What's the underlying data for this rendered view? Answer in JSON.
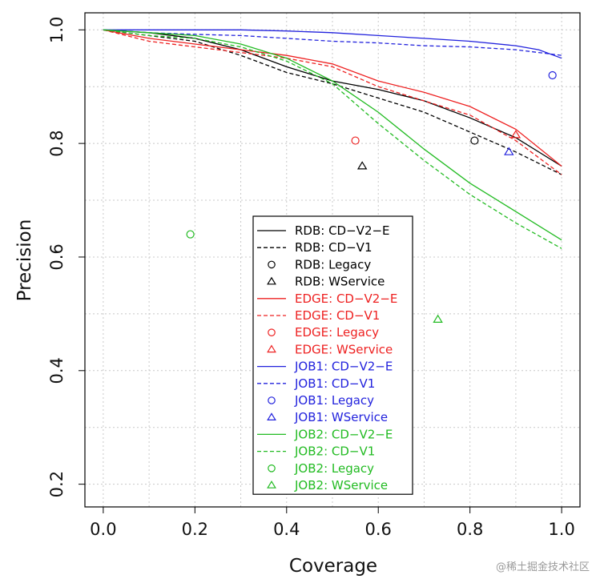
{
  "chart_data": {
    "type": "line",
    "title": "",
    "xlabel": "Coverage",
    "ylabel": "Precision",
    "xlim": [
      -0.04,
      1.04
    ],
    "ylim": [
      0.16,
      1.03
    ],
    "xticks": [
      0.0,
      0.2,
      0.4,
      0.6,
      0.8,
      1.0
    ],
    "xtick_labels": [
      "0.0",
      "0.2",
      "0.4",
      "0.6",
      "0.8",
      "1.0"
    ],
    "yticks": [
      0.2,
      0.4,
      0.6,
      0.8,
      1.0
    ],
    "ytick_labels": [
      "0.2",
      "0.4",
      "0.6",
      "0.8",
      "1.0"
    ],
    "grid": true,
    "legend_position": "bottom-center",
    "series": [
      {
        "name": "RDB: CD−V2−E",
        "kind": "line",
        "style": "solid",
        "color": "#000000",
        "x": [
          0.0,
          0.1,
          0.2,
          0.3,
          0.4,
          0.5,
          0.6,
          0.7,
          0.8,
          0.9,
          1.0
        ],
        "y": [
          1.0,
          0.995,
          0.985,
          0.965,
          0.935,
          0.91,
          0.895,
          0.875,
          0.845,
          0.81,
          0.76
        ]
      },
      {
        "name": "RDB: CD−V1",
        "kind": "line",
        "style": "dashed",
        "color": "#000000",
        "x": [
          0.0,
          0.1,
          0.2,
          0.3,
          0.4,
          0.5,
          0.6,
          0.7,
          0.8,
          0.9,
          1.0
        ],
        "y": [
          1.0,
          0.99,
          0.98,
          0.955,
          0.925,
          0.905,
          0.88,
          0.855,
          0.82,
          0.785,
          0.745
        ]
      },
      {
        "name": "RDB: Legacy",
        "kind": "point",
        "marker": "circle",
        "color": "#000000",
        "x": [
          0.81
        ],
        "y": [
          0.805
        ]
      },
      {
        "name": "RDB: WService",
        "kind": "point",
        "marker": "triangle",
        "color": "#000000",
        "x": [
          0.565
        ],
        "y": [
          0.76
        ]
      },
      {
        "name": "EDGE: CD−V2−E",
        "kind": "line",
        "style": "solid",
        "color": "#ee2222",
        "x": [
          0.0,
          0.1,
          0.2,
          0.3,
          0.4,
          0.5,
          0.6,
          0.7,
          0.8,
          0.9,
          1.0
        ],
        "y": [
          1.0,
          0.985,
          0.975,
          0.965,
          0.955,
          0.94,
          0.91,
          0.89,
          0.865,
          0.825,
          0.76
        ]
      },
      {
        "name": "EDGE: CD−V1",
        "kind": "line",
        "style": "dashed",
        "color": "#ee2222",
        "x": [
          0.0,
          0.1,
          0.2,
          0.3,
          0.4,
          0.5,
          0.6,
          0.7,
          0.8,
          0.9,
          1.0
        ],
        "y": [
          1.0,
          0.98,
          0.97,
          0.96,
          0.95,
          0.935,
          0.9,
          0.875,
          0.85,
          0.805,
          0.745
        ]
      },
      {
        "name": "EDGE: Legacy",
        "kind": "point",
        "marker": "circle",
        "color": "#ee2222",
        "x": [
          0.55
        ],
        "y": [
          0.805
        ]
      },
      {
        "name": "EDGE: WService",
        "kind": "point",
        "marker": "triangle",
        "color": "#ee2222",
        "x": [
          0.9
        ],
        "y": [
          0.815
        ]
      },
      {
        "name": "JOB1: CD−V2−E",
        "kind": "line",
        "style": "solid",
        "color": "#2222dd",
        "x": [
          0.0,
          0.1,
          0.2,
          0.3,
          0.4,
          0.5,
          0.6,
          0.7,
          0.8,
          0.9,
          0.95,
          1.0
        ],
        "y": [
          1.0,
          1.0,
          1.0,
          1.0,
          0.998,
          0.995,
          0.99,
          0.985,
          0.98,
          0.972,
          0.965,
          0.95
        ]
      },
      {
        "name": "JOB1: CD−V1",
        "kind": "line",
        "style": "dashed",
        "color": "#2222dd",
        "x": [
          0.0,
          0.1,
          0.2,
          0.3,
          0.4,
          0.5,
          0.6,
          0.7,
          0.8,
          0.9,
          0.95,
          1.0
        ],
        "y": [
          1.0,
          0.995,
          0.992,
          0.99,
          0.985,
          0.98,
          0.977,
          0.972,
          0.97,
          0.965,
          0.96,
          0.955
        ]
      },
      {
        "name": "JOB1: Legacy",
        "kind": "point",
        "marker": "circle",
        "color": "#2222dd",
        "x": [
          0.98
        ],
        "y": [
          0.92
        ]
      },
      {
        "name": "JOB1: WService",
        "kind": "point",
        "marker": "triangle",
        "color": "#2222dd",
        "x": [
          0.885
        ],
        "y": [
          0.785
        ]
      },
      {
        "name": "JOB2: CD−V2−E",
        "kind": "line",
        "style": "solid",
        "color": "#22bb22",
        "x": [
          0.0,
          0.1,
          0.2,
          0.3,
          0.4,
          0.5,
          0.6,
          0.7,
          0.8,
          0.9,
          1.0
        ],
        "y": [
          1.0,
          0.995,
          0.99,
          0.975,
          0.95,
          0.91,
          0.855,
          0.79,
          0.73,
          0.68,
          0.63
        ]
      },
      {
        "name": "JOB2: CD−V1",
        "kind": "line",
        "style": "dashed",
        "color": "#22bb22",
        "x": [
          0.0,
          0.1,
          0.2,
          0.3,
          0.4,
          0.5,
          0.6,
          0.7,
          0.8,
          0.9,
          1.0
        ],
        "y": [
          1.0,
          0.99,
          0.985,
          0.97,
          0.945,
          0.905,
          0.835,
          0.77,
          0.71,
          0.66,
          0.615
        ]
      },
      {
        "name": "JOB2: Legacy",
        "kind": "point",
        "marker": "circle",
        "color": "#22bb22",
        "x": [
          0.19
        ],
        "y": [
          0.64
        ]
      },
      {
        "name": "JOB2: WService",
        "kind": "point",
        "marker": "triangle",
        "color": "#22bb22",
        "x": [
          0.73
        ],
        "y": [
          0.49
        ]
      }
    ]
  },
  "watermark": "@稀土掘金技术社区"
}
